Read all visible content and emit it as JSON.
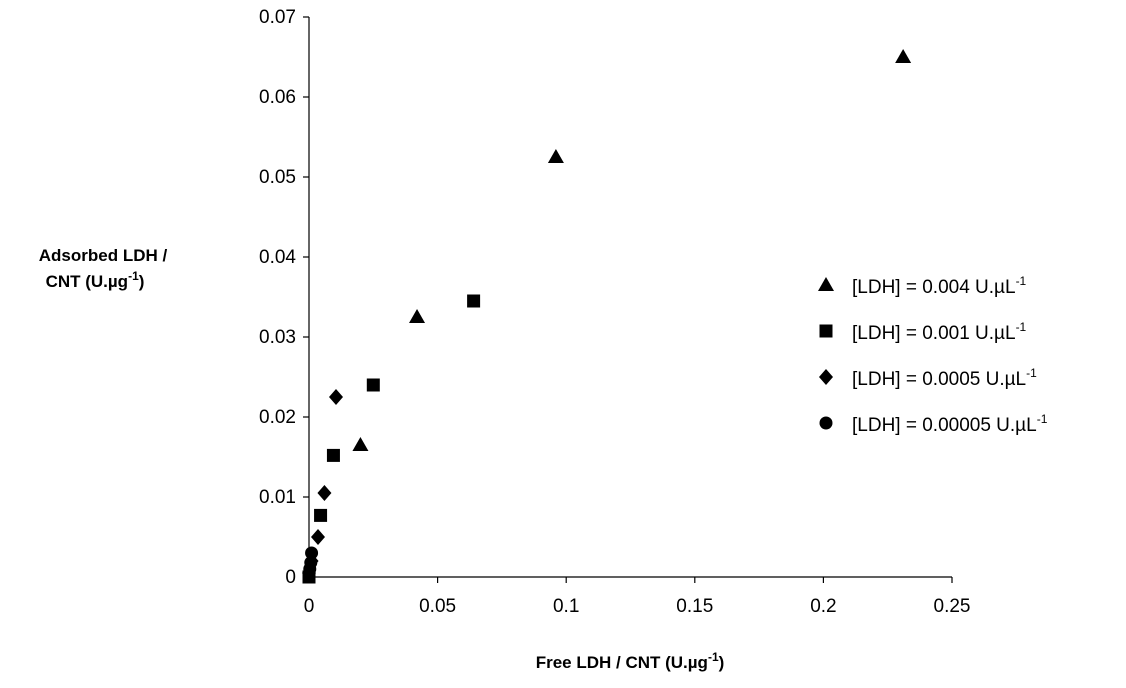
{
  "chart_data": {
    "type": "scatter",
    "title": "",
    "xlabel": {
      "main": "Free LDH / CNT (U.µg",
      "sup": "-1",
      "tail": ")"
    },
    "ylabel": {
      "line1": "Adsorbed LDH /",
      "line2_main": "CNT (U.µg",
      "line2_sup": "-1",
      "line2_tail": ")"
    },
    "xlim": [
      0,
      0.25
    ],
    "ylim": [
      0,
      0.07
    ],
    "x_ticks": [
      "0",
      "0.05",
      "0.1",
      "0.15",
      "0.2",
      "0.25"
    ],
    "y_ticks": [
      "0",
      "0.01",
      "0.02",
      "0.03",
      "0.04",
      "0.05",
      "0.06",
      "0.07"
    ],
    "grid": false,
    "legend_position": "right",
    "series": [
      {
        "name": "[LDH] = 0.004 U.µL",
        "name_sup": "-1",
        "marker": "triangle",
        "points": [
          [
            0.02,
            0.0165
          ],
          [
            0.042,
            0.0325
          ],
          [
            0.096,
            0.0525
          ],
          [
            0.231,
            0.065
          ]
        ]
      },
      {
        "name": "[LDH] = 0.001 U.µL",
        "name_sup": "-1",
        "marker": "square",
        "points": [
          [
            0.0,
            0.0
          ],
          [
            0.0045,
            0.0077
          ],
          [
            0.0095,
            0.0152
          ],
          [
            0.025,
            0.024
          ],
          [
            0.064,
            0.0345
          ]
        ]
      },
      {
        "name": "[LDH] = 0.0005 U.µL",
        "name_sup": "-1",
        "marker": "diamond",
        "points": [
          [
            0.0,
            0.0005
          ],
          [
            0.001,
            0.002
          ],
          [
            0.0035,
            0.005
          ],
          [
            0.006,
            0.0105
          ],
          [
            0.0105,
            0.0225
          ]
        ]
      },
      {
        "name": "[LDH] = 0.00005 U.µL",
        "name_sup": "-1",
        "marker": "circle",
        "points": [
          [
            0.0,
            0.0
          ],
          [
            0.0003,
            0.001
          ],
          [
            0.0007,
            0.0018
          ],
          [
            0.001,
            0.003
          ]
        ]
      }
    ]
  }
}
